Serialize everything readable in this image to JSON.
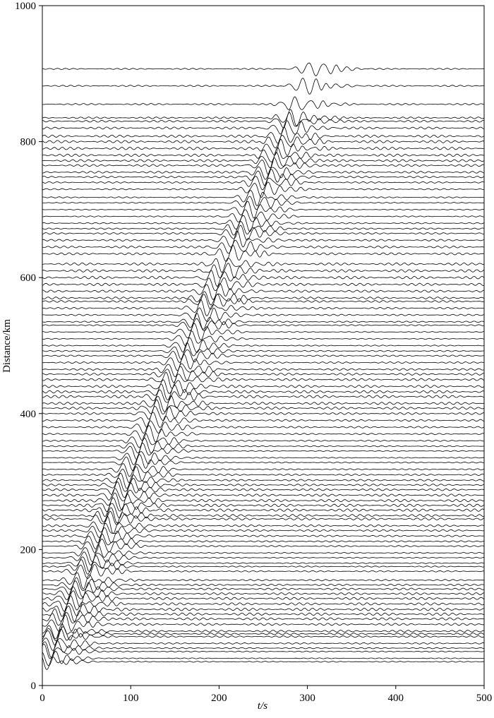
{
  "chart_data": {
    "type": "seismogram",
    "xlabel": "t/s",
    "ylabel": "Distance/km",
    "xlim": [
      0,
      500
    ],
    "xticks": [
      0,
      100,
      200,
      300,
      400,
      500
    ],
    "ylim": [
      0,
      1000
    ],
    "yticks": [
      0,
      200,
      400,
      600,
      800,
      1000
    ],
    "color": "#000000",
    "traces": {
      "distance": [
        35,
        40,
        50,
        55,
        62,
        72,
        76,
        80,
        90,
        98,
        105,
        112,
        120,
        128,
        135,
        142,
        148,
        155,
        168,
        175,
        180,
        188,
        195,
        205,
        212,
        220,
        228,
        235,
        245,
        250,
        258,
        265,
        272,
        280,
        288,
        295,
        302,
        310,
        318,
        328,
        335,
        345,
        352,
        360,
        370,
        380,
        390,
        400,
        408,
        415,
        425,
        432,
        440,
        450,
        458,
        465,
        475,
        485,
        492,
        500,
        510,
        520,
        530,
        535,
        545,
        555,
        565,
        570,
        580,
        590,
        600,
        610,
        620,
        635,
        645,
        655,
        665,
        672,
        680,
        690,
        700,
        710,
        718,
        730,
        740,
        748,
        755,
        765,
        772,
        780,
        790,
        800,
        808,
        820,
        830,
        835,
        855,
        882,
        907
      ],
      "arrival": [
        2,
        4,
        8,
        9,
        12,
        15,
        17,
        18,
        22,
        24,
        27,
        29,
        32,
        35,
        37,
        40,
        42,
        44,
        49,
        51,
        53,
        56,
        58,
        62,
        64,
        67,
        70,
        72,
        76,
        78,
        80,
        83,
        85,
        88,
        91,
        93,
        96,
        99,
        101,
        105,
        107,
        111,
        113,
        116,
        120,
        123,
        127,
        130,
        133,
        135,
        139,
        141,
        144,
        148,
        150,
        153,
        156,
        160,
        162,
        165,
        169,
        172,
        176,
        177,
        181,
        184,
        188,
        190,
        193,
        197,
        200,
        204,
        207,
        212,
        216,
        219,
        223,
        225,
        228,
        232,
        235,
        239,
        241,
        246,
        249,
        252,
        254,
        258,
        260,
        263,
        267,
        270,
        273,
        277,
        281,
        282,
        289,
        299,
        307
      ]
    }
  }
}
